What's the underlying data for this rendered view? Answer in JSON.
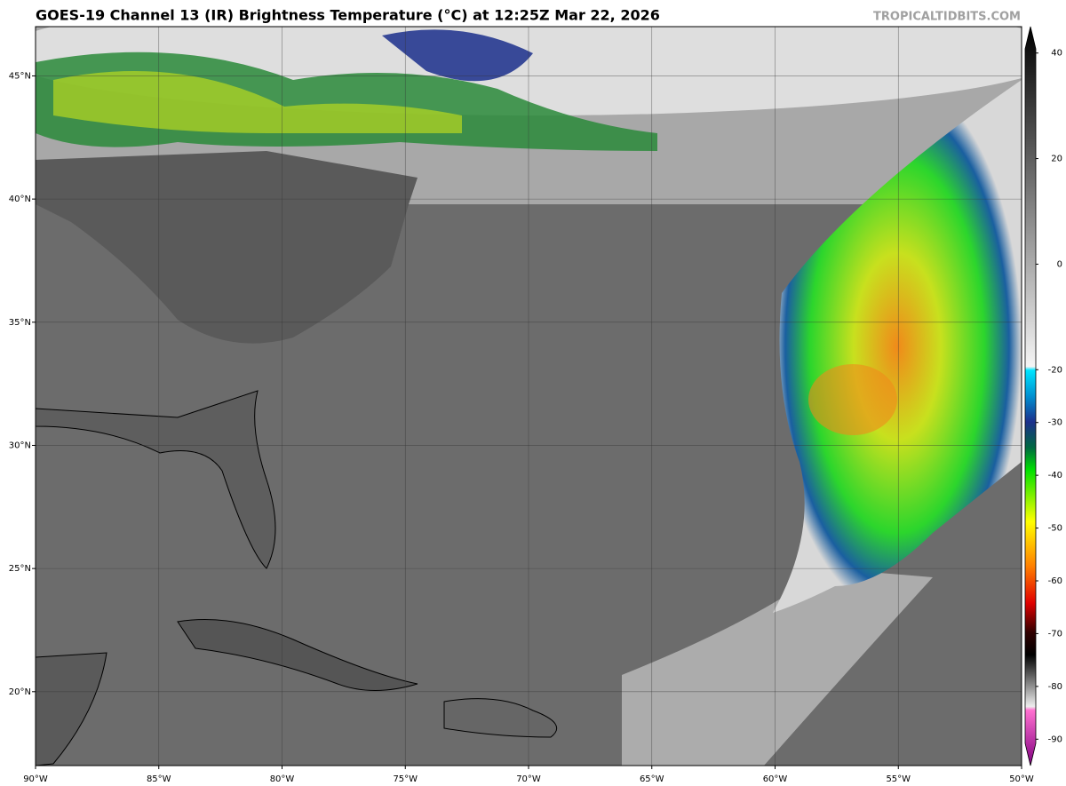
{
  "header": {
    "title": "GOES-19 Channel 13 (IR) Brightness Temperature (°C) at 12:25Z Mar 22, 2026",
    "watermark": "TROPICALTIDBITS.COM"
  },
  "map": {
    "lon_range": [
      -90,
      -50
    ],
    "lat_range": [
      17,
      47
    ],
    "lon_ticks": [
      {
        "value": -90,
        "label": "90°W"
      },
      {
        "value": -85,
        "label": "85°W"
      },
      {
        "value": -80,
        "label": "80°W"
      },
      {
        "value": -75,
        "label": "75°W"
      },
      {
        "value": -70,
        "label": "70°W"
      },
      {
        "value": -65,
        "label": "65°W"
      },
      {
        "value": -60,
        "label": "60°W"
      },
      {
        "value": -55,
        "label": "55°W"
      },
      {
        "value": -50,
        "label": "50°W"
      }
    ],
    "lat_ticks": [
      {
        "value": 20,
        "label": "20°N"
      },
      {
        "value": 25,
        "label": "25°N"
      },
      {
        "value": 30,
        "label": "30°N"
      },
      {
        "value": 35,
        "label": "35°N"
      },
      {
        "value": 40,
        "label": "40°N"
      },
      {
        "value": 45,
        "label": "45°N"
      }
    ]
  },
  "colorbar": {
    "range": [
      -95,
      45
    ],
    "ticks": [
      40,
      20,
      0,
      -20,
      -30,
      -40,
      -50,
      -60,
      -70,
      -80,
      -90
    ]
  }
}
